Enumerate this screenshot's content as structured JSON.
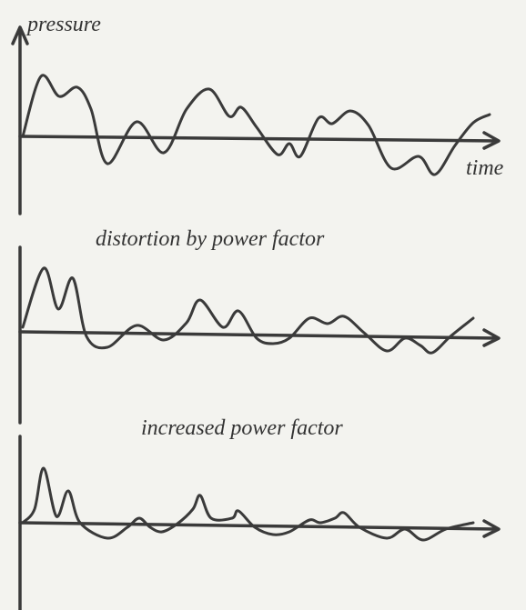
{
  "panels": [
    {
      "label": "pressure",
      "axis_label": "time"
    },
    {
      "label": "distortion by power factor"
    },
    {
      "label": "increased power factor"
    }
  ]
}
